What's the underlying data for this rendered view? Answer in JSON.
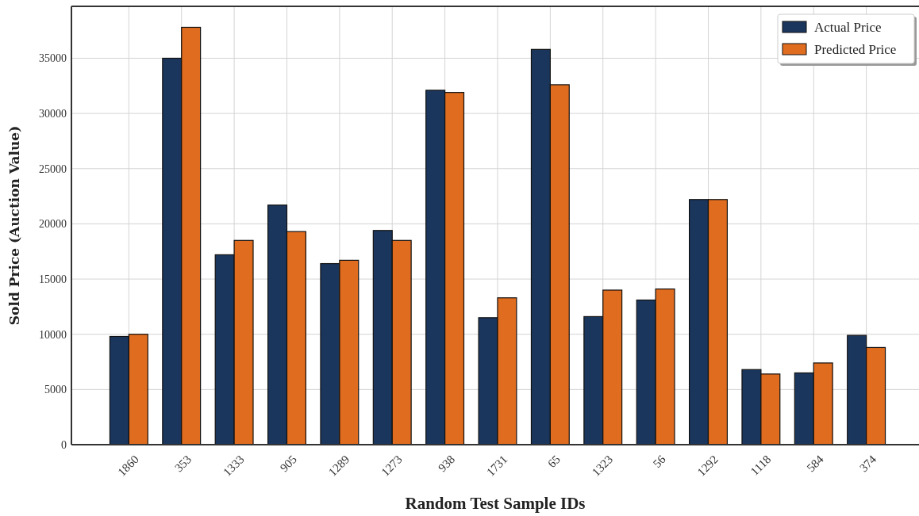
{
  "chart_data": {
    "type": "bar",
    "xlabel": "Random Test Sample IDs",
    "ylabel": "Sold Price (Auction Value)",
    "categories": [
      "1860",
      "353",
      "1333",
      "905",
      "1289",
      "1273",
      "938",
      "1731",
      "65",
      "1323",
      "56",
      "1292",
      "1118",
      "584",
      "374"
    ],
    "series": [
      {
        "name": "Actual Price",
        "color": "#1b365d",
        "values": [
          9800,
          35000,
          17200,
          21700,
          16400,
          19400,
          32100,
          11500,
          35800,
          11600,
          13100,
          22200,
          6800,
          6500,
          9900
        ]
      },
      {
        "name": "Predicted Price",
        "color": "#e06c1f",
        "values": [
          10000,
          37800,
          18500,
          19300,
          16700,
          18500,
          31900,
          13300,
          32600,
          14000,
          14100,
          22200,
          6400,
          7400,
          8800
        ]
      }
    ],
    "ylim": [
      0,
      39700
    ],
    "yticks": [
      0,
      5000,
      10000,
      15000,
      20000,
      25000,
      30000,
      35000
    ],
    "grid": true,
    "legend": "top right"
  }
}
